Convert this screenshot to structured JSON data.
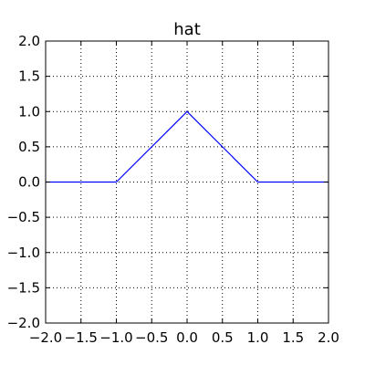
{
  "chart_data": {
    "type": "line",
    "title": "hat",
    "xlabel": "",
    "ylabel": "",
    "xlim": [
      -2.0,
      2.0
    ],
    "ylim": [
      -2.0,
      2.0
    ],
    "grid": true,
    "grid_style": "dotted",
    "x_ticks": [
      -2.0,
      -1.5,
      -1.0,
      -0.5,
      0.0,
      0.5,
      1.0,
      1.5,
      2.0
    ],
    "x_tick_labels": [
      "−2.0",
      "−1.5",
      "−1.0",
      "−0.5",
      "0.0",
      "0.5",
      "1.0",
      "1.5",
      "2.0"
    ],
    "y_ticks": [
      2.0,
      1.5,
      1.0,
      0.5,
      0.0,
      -0.5,
      -1.0,
      -1.5,
      -2.0
    ],
    "y_tick_labels": [
      "2.0",
      "1.5",
      "1.0",
      "0.5",
      "0.0",
      "−0.5",
      "−1.0",
      "−1.5",
      "−2.0"
    ],
    "series": [
      {
        "color": "#0000ff",
        "x": [
          -2.0,
          -1.0,
          0.0,
          1.0,
          2.0
        ],
        "y": [
          0.0,
          0.0,
          1.0,
          0.0,
          0.0
        ]
      }
    ]
  }
}
